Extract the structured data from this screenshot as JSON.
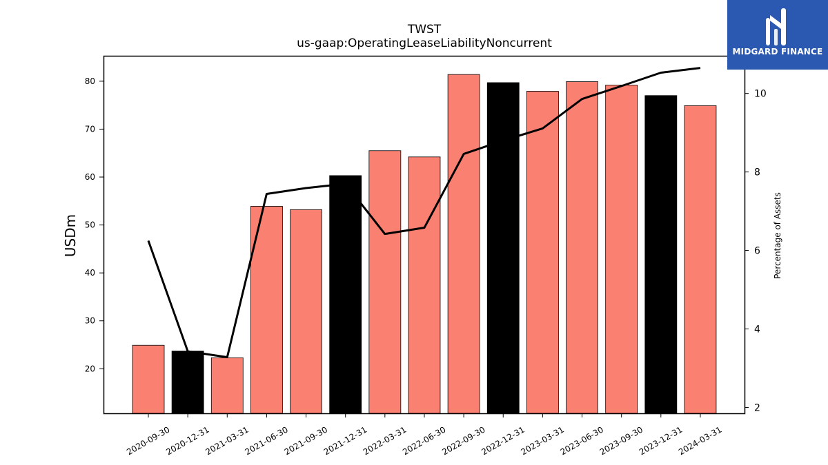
{
  "chart_data": {
    "type": "bar",
    "title": "TWST",
    "subtitle": "us-gaap:OperatingLeaseLiabilityNoncurrent",
    "ylabel": "USDm",
    "y2label": "Percentage of Assets",
    "ylim": [
      10.7,
      85.3
    ],
    "y2lim": [
      1.85,
      10.96
    ],
    "yticks": [
      20,
      30,
      40,
      50,
      60,
      70,
      80
    ],
    "y2ticks": [
      2,
      4,
      6,
      8,
      10
    ],
    "grid": false,
    "categories": [
      "2020-09-30",
      "2020-12-31",
      "2021-03-31",
      "2021-06-30",
      "2021-09-30",
      "2021-12-31",
      "2022-03-31",
      "2022-06-30",
      "2022-09-30",
      "2022-12-31",
      "2023-03-31",
      "2023-06-30",
      "2023-09-30",
      "2023-12-31",
      "2024-03-31"
    ],
    "values": [
      24.9,
      23.7,
      22.3,
      53.9,
      53.2,
      60.3,
      65.5,
      64.2,
      81.4,
      79.7,
      77.9,
      79.9,
      79.2,
      77.0,
      74.9
    ],
    "bar_colors": [
      "#fa8072",
      "#000000",
      "#fa8072",
      "#fa8072",
      "#fa8072",
      "#000000",
      "#fa8072",
      "#fa8072",
      "#fa8072",
      "#000000",
      "#fa8072",
      "#fa8072",
      "#fa8072",
      "#000000",
      "#fa8072"
    ],
    "line_series": {
      "axis": "right",
      "color": "#000000",
      "values": [
        6.25,
        3.43,
        3.28,
        7.44,
        7.59,
        7.7,
        6.42,
        6.58,
        8.46,
        8.8,
        9.11,
        9.86,
        10.19,
        10.53,
        10.65
      ]
    }
  },
  "logo": {
    "text": "MIDGARD FINANCE"
  }
}
